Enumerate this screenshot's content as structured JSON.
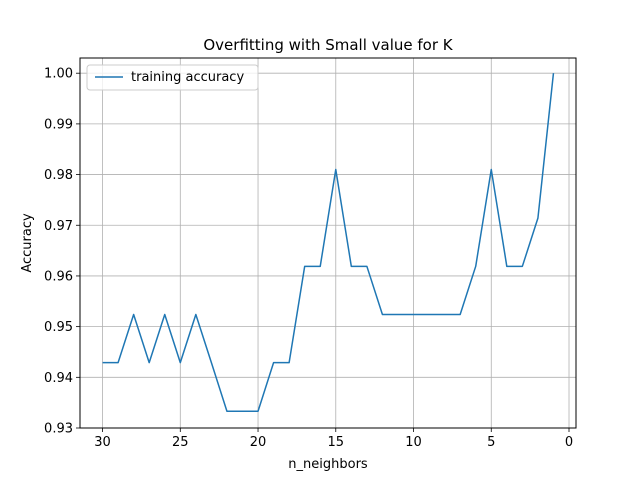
{
  "chart_data": {
    "type": "line",
    "title": "Overfitting with Small value for K",
    "xlabel": "n_neighbors",
    "ylabel": "Accuracy",
    "x_inverted": true,
    "xlim": [
      31.45,
      -0.45
    ],
    "ylim": [
      0.93,
      1.003
    ],
    "xticks": [
      30,
      25,
      20,
      15,
      10,
      5,
      0
    ],
    "yticks": [
      0.93,
      0.94,
      0.95,
      0.96,
      0.97,
      0.98,
      0.99,
      1.0
    ],
    "ytick_labels": [
      "0.93",
      "0.94",
      "0.95",
      "0.96",
      "0.97",
      "0.98",
      "0.99",
      "1.00"
    ],
    "grid": true,
    "legend_position": "top-left",
    "series": [
      {
        "name": "training accuracy",
        "color": "#1f77b4",
        "x": [
          1,
          2,
          3,
          4,
          5,
          6,
          7,
          8,
          9,
          10,
          11,
          12,
          13,
          14,
          15,
          16,
          17,
          18,
          19,
          20,
          21,
          22,
          23,
          24,
          25,
          26,
          27,
          28,
          29,
          30
        ],
        "y": [
          1.0,
          0.9714,
          0.9619,
          0.9619,
          0.981,
          0.9619,
          0.9524,
          0.9524,
          0.9524,
          0.9524,
          0.9524,
          0.9524,
          0.9619,
          0.9619,
          0.981,
          0.9619,
          0.9619,
          0.9429,
          0.9429,
          0.9333,
          0.9333,
          0.9333,
          0.9429,
          0.9524,
          0.9429,
          0.9524,
          0.9429,
          0.9524,
          0.9429,
          0.9429
        ]
      }
    ]
  }
}
